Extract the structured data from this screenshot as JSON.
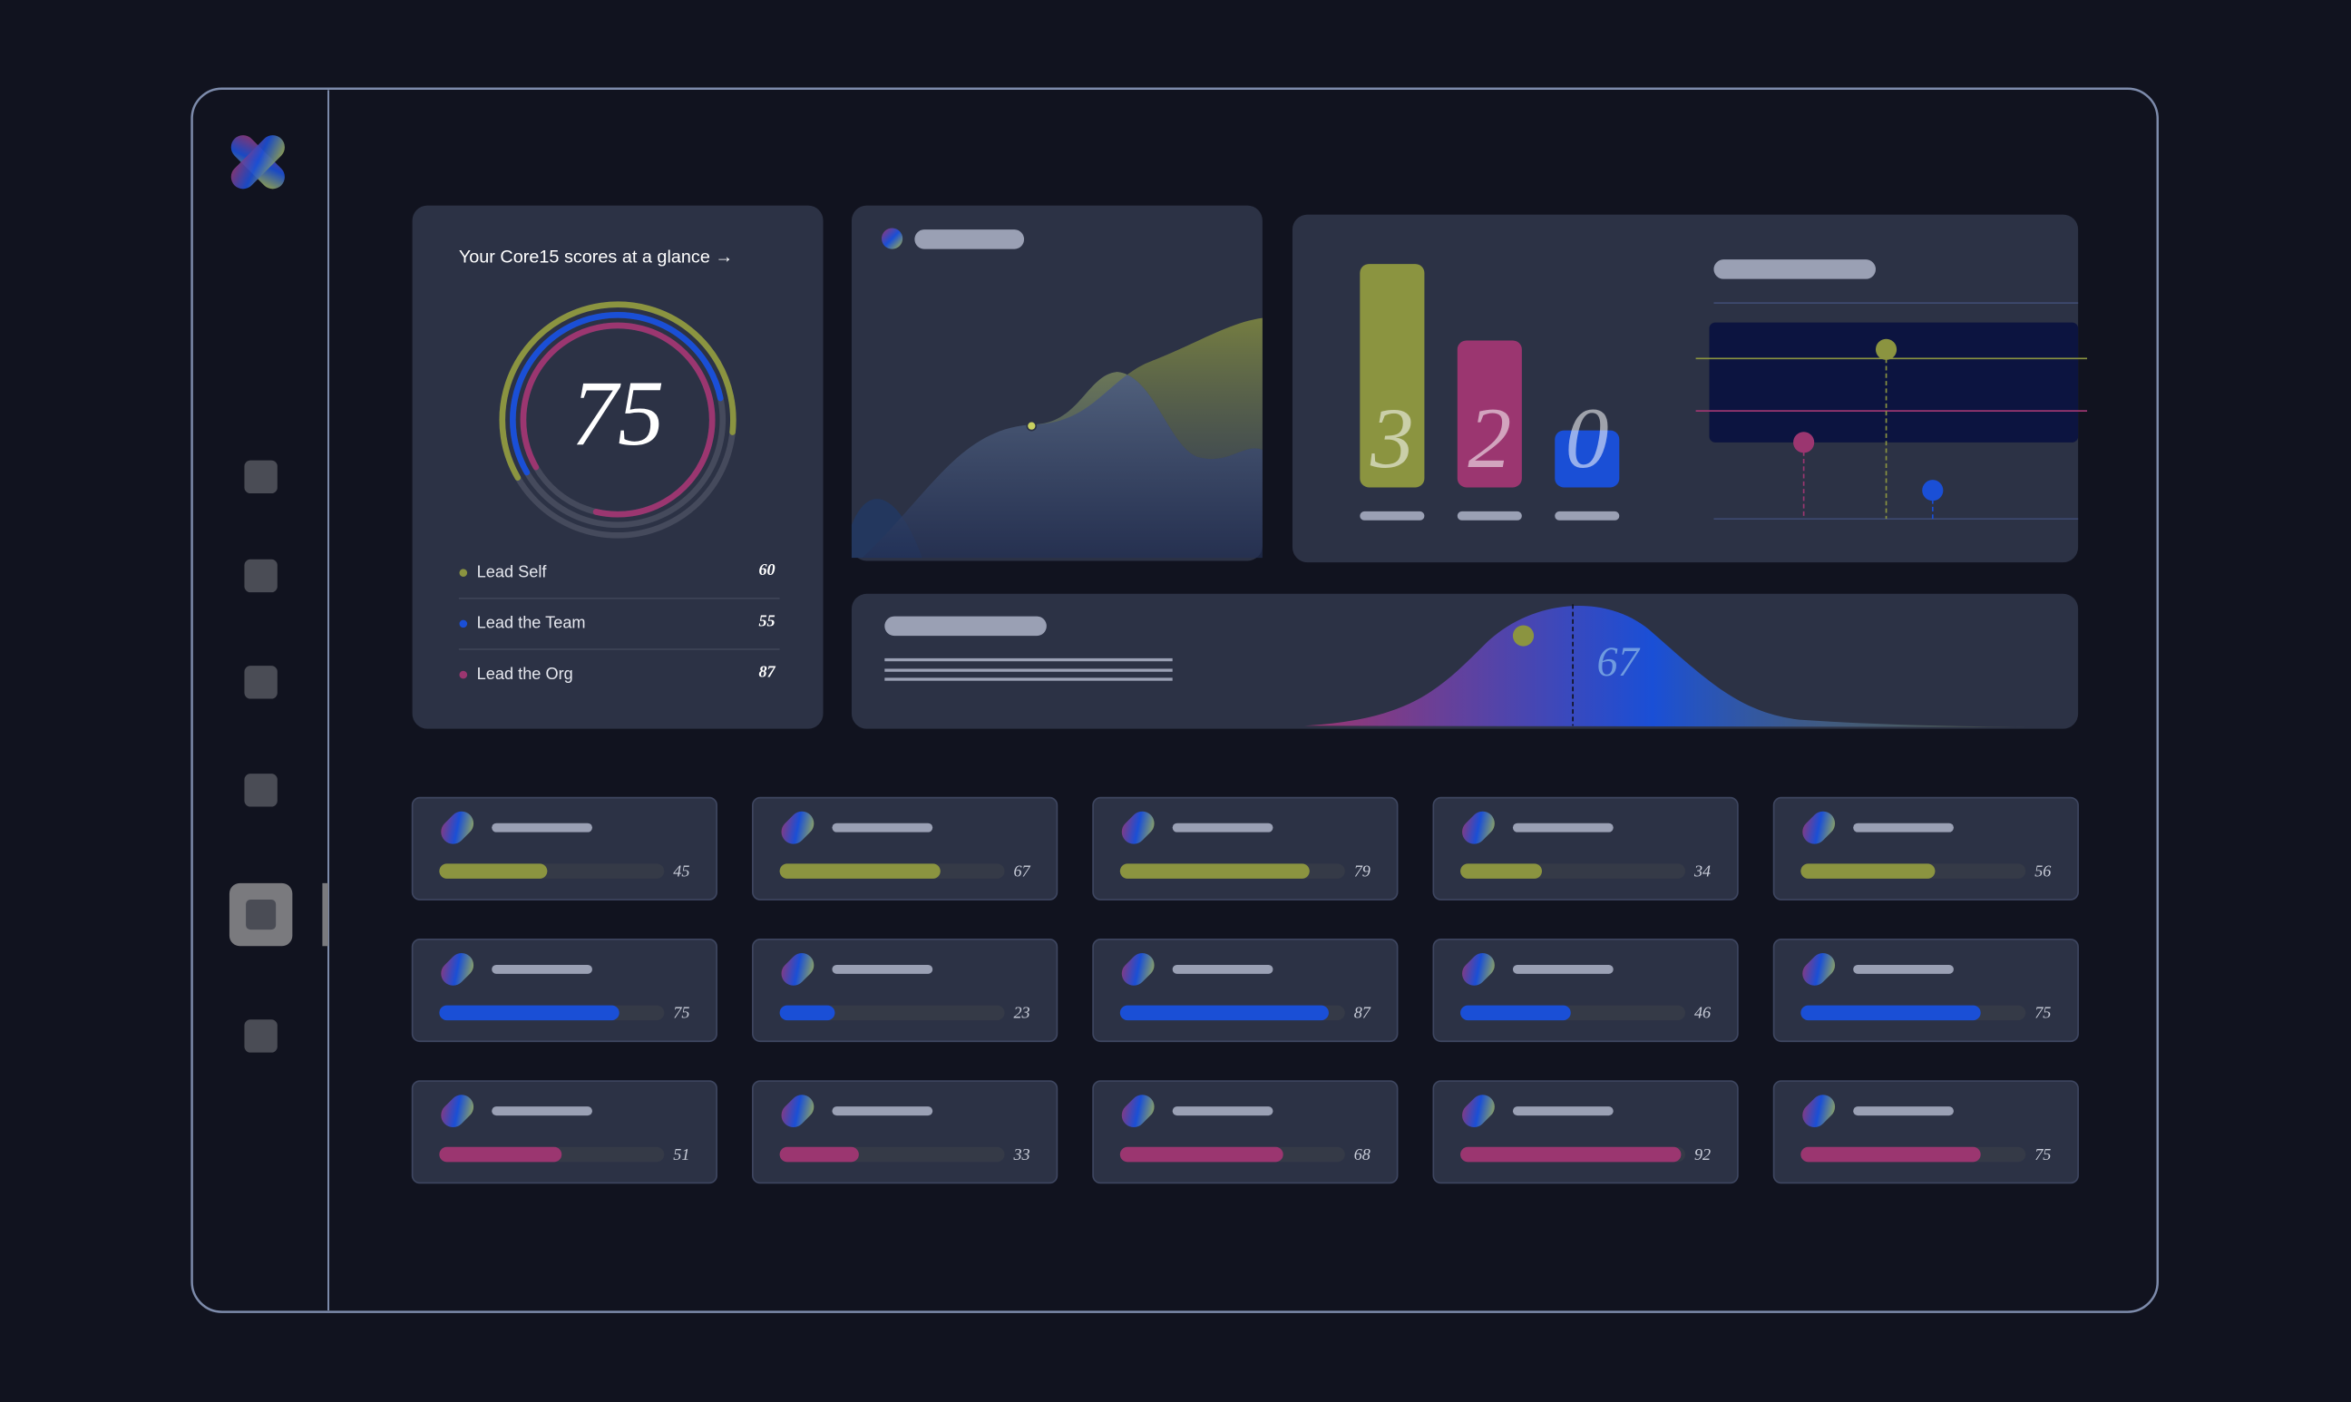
{
  "scorecard": {
    "title": "Your Core15 scores at a glance →",
    "score": 75,
    "items": [
      {
        "label": "Lead Self",
        "value": 60,
        "color": "#8b9440"
      },
      {
        "label": "Lead the Team",
        "value": 55,
        "color": "#1a4fd6"
      },
      {
        "label": "Lead the Org",
        "value": 87,
        "color": "#9b3670"
      }
    ]
  },
  "bars": [
    {
      "value": 3,
      "color": "#8b9440"
    },
    {
      "value": 2,
      "color": "#9b3670"
    },
    {
      "value": 0,
      "color": "#1a4fd6"
    }
  ],
  "distribution": {
    "value": 67
  },
  "cards": [
    {
      "color": "#8b9440",
      "values": [
        45,
        67,
        79,
        34,
        56
      ]
    },
    {
      "color": "#1a4fd6",
      "values": [
        75,
        23,
        87,
        46,
        75
      ]
    },
    {
      "color": "#9b3670",
      "values": [
        51,
        33,
        68,
        92,
        75
      ]
    }
  ]
}
